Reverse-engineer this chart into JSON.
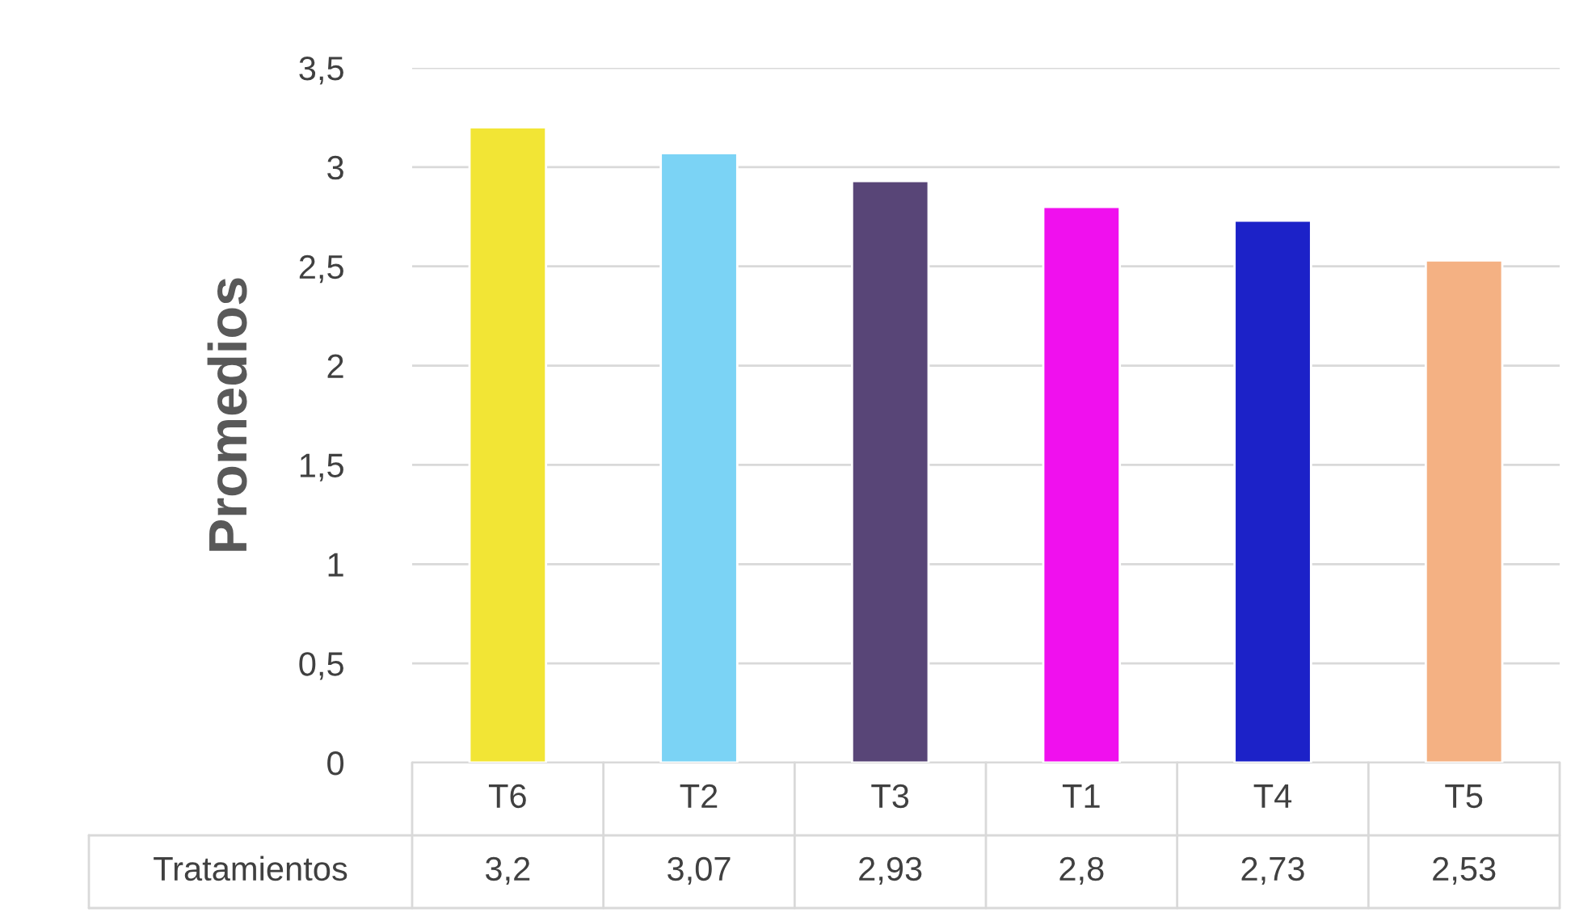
{
  "chart_data": {
    "type": "bar",
    "ylabel": "Promedios",
    "xlabel": "Tratamientos",
    "categories": [
      "T6",
      "T2",
      "T3",
      "T1",
      "T4",
      "T5"
    ],
    "values": [
      3.2,
      3.07,
      2.93,
      2.8,
      2.73,
      2.53
    ],
    "colors": [
      "#f2e535",
      "#7bd3f5",
      "#584577",
      "#f010ee",
      "#1c22c8",
      "#f4b183"
    ],
    "value_labels": [
      "3,2",
      "3,07",
      "2,93",
      "2,8",
      "2,73",
      "2,53"
    ],
    "ylim": [
      0,
      3.5
    ],
    "yticks": [
      0,
      {
        "value": 0.5,
        "label": "0,5"
      },
      1,
      {
        "value": 1.5,
        "label": "1,5"
      },
      2,
      {
        "value": 2.5,
        "label": "2,5"
      },
      3,
      {
        "value": 3.5,
        "label": "3,5"
      }
    ],
    "grid": "y",
    "legend": false
  }
}
